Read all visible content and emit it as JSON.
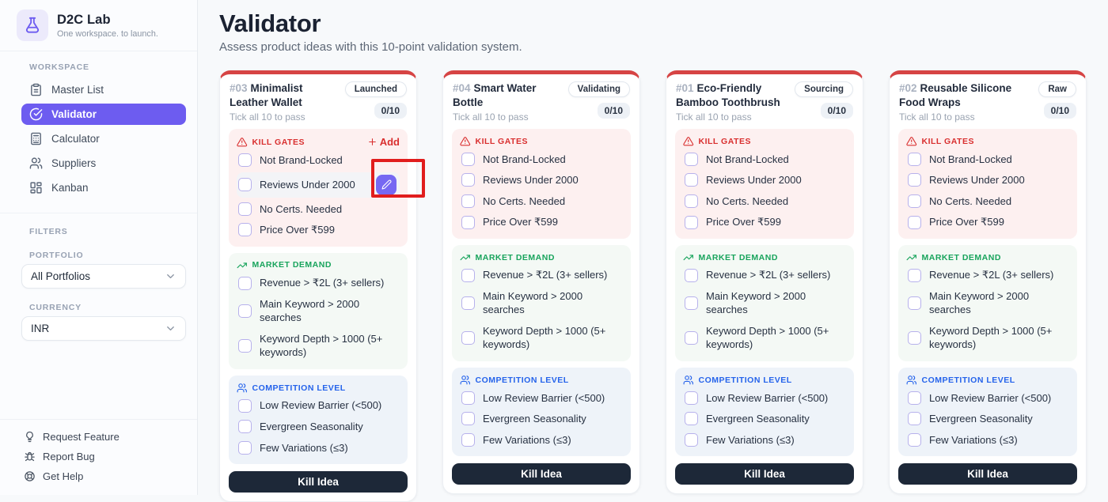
{
  "sidebar": {
    "logo": {
      "title": "D2C Lab",
      "subtitle": "One workspace. to launch."
    },
    "workspace_label": "WORKSPACE",
    "nav": [
      {
        "label": "Master List"
      },
      {
        "label": "Validator",
        "active": true
      },
      {
        "label": "Calculator"
      },
      {
        "label": "Suppliers"
      },
      {
        "label": "Kanban"
      }
    ],
    "filters_label": "FILTERS",
    "portfolio": {
      "label": "PORTFOLIO",
      "value": "All Portfolios"
    },
    "currency": {
      "label": "CURRENCY",
      "value": "INR"
    },
    "footer": [
      {
        "label": "Request Feature"
      },
      {
        "label": "Report Bug"
      },
      {
        "label": "Get Help"
      }
    ]
  },
  "header": {
    "title": "Validator",
    "subtitle": "Assess product ideas with this 10-point validation system."
  },
  "cards": [
    {
      "id": "#03",
      "title": "Minimalist Leather Wallet",
      "status": "Launched",
      "note": "Tick all 10 to pass",
      "score": "0/10",
      "action": "Kill Idea",
      "add_button": "Add",
      "highlight": {
        "section": 0,
        "item": 1,
        "edit_button": true
      },
      "sections": [
        {
          "type": "kill_gates",
          "label": "KILL GATES",
          "items": [
            "Not Brand-Locked",
            "Reviews Under 2000",
            "No Certs. Needed",
            "Price Over ₹599"
          ]
        },
        {
          "type": "market_demand",
          "label": "MARKET DEMAND",
          "items": [
            "Revenue > ₹2L (3+ sellers)",
            "Main Keyword > 2000 searches",
            "Keyword Depth > 1000 (5+ keywords)"
          ]
        },
        {
          "type": "competition_level",
          "label": "COMPETITION LEVEL",
          "items": [
            "Low Review Barrier (<500)",
            "Evergreen Seasonality",
            "Few Variations (≤3)"
          ]
        }
      ]
    },
    {
      "id": "#04",
      "title": "Smart Water Bottle",
      "status": "Validating",
      "note": "Tick all 10 to pass",
      "score": "0/10",
      "action": "Kill Idea",
      "sections": [
        {
          "type": "kill_gates",
          "label": "KILL GATES",
          "items": [
            "Not Brand-Locked",
            "Reviews Under 2000",
            "No Certs. Needed",
            "Price Over ₹599"
          ]
        },
        {
          "type": "market_demand",
          "label": "MARKET DEMAND",
          "items": [
            "Revenue > ₹2L (3+ sellers)",
            "Main Keyword > 2000 searches",
            "Keyword Depth > 1000 (5+ keywords)"
          ]
        },
        {
          "type": "competition_level",
          "label": "COMPETITION LEVEL",
          "items": [
            "Low Review Barrier (<500)",
            "Evergreen Seasonality",
            "Few Variations (≤3)"
          ]
        }
      ]
    },
    {
      "id": "#01",
      "title": "Eco-Friendly Bamboo Toothbrush",
      "status": "Sourcing",
      "note": "Tick all 10 to pass",
      "score": "0/10",
      "action": "Kill Idea",
      "sections": [
        {
          "type": "kill_gates",
          "label": "KILL GATES",
          "items": [
            "Not Brand-Locked",
            "Reviews Under 2000",
            "No Certs. Needed",
            "Price Over ₹599"
          ]
        },
        {
          "type": "market_demand",
          "label": "MARKET DEMAND",
          "items": [
            "Revenue > ₹2L (3+ sellers)",
            "Main Keyword > 2000 searches",
            "Keyword Depth > 1000 (5+ keywords)"
          ]
        },
        {
          "type": "competition_level",
          "label": "COMPETITION LEVEL",
          "items": [
            "Low Review Barrier (<500)",
            "Evergreen Seasonality",
            "Few Variations (≤3)"
          ]
        }
      ]
    },
    {
      "id": "#02",
      "title": "Reusable Silicone Food Wraps",
      "status": "Raw",
      "note": "Tick all 10 to pass",
      "score": "0/10",
      "action": "Kill Idea",
      "sections": [
        {
          "type": "kill_gates",
          "label": "KILL GATES",
          "items": [
            "Not Brand-Locked",
            "Reviews Under 2000",
            "No Certs. Needed",
            "Price Over ₹599"
          ]
        },
        {
          "type": "market_demand",
          "label": "MARKET DEMAND",
          "items": [
            "Revenue > ₹2L (3+ sellers)",
            "Main Keyword > 2000 searches",
            "Keyword Depth > 1000 (5+ keywords)"
          ]
        },
        {
          "type": "competition_level",
          "label": "COMPETITION LEVEL",
          "items": [
            "Low Review Barrier (<500)",
            "Evergreen Seasonality",
            "Few Variations (≤3)"
          ]
        }
      ]
    }
  ],
  "colors": {
    "accent_purple": "#6d5cf0",
    "danger_red": "#d92f2f",
    "card_top_border": "#d64444",
    "success_green": "#18a45c",
    "info_blue": "#2563eb",
    "dark_button": "#1d2838",
    "annotation_box": "#e11d1d"
  }
}
